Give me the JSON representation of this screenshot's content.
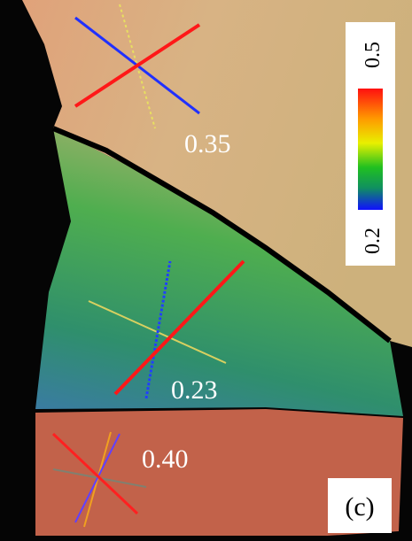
{
  "region_labels": {
    "top": "0.35",
    "middle": "0.23",
    "bottom": "0.40"
  },
  "colorbar": {
    "max_label": "0.5",
    "min_label": "0.2"
  },
  "panel_label": "(c)"
}
